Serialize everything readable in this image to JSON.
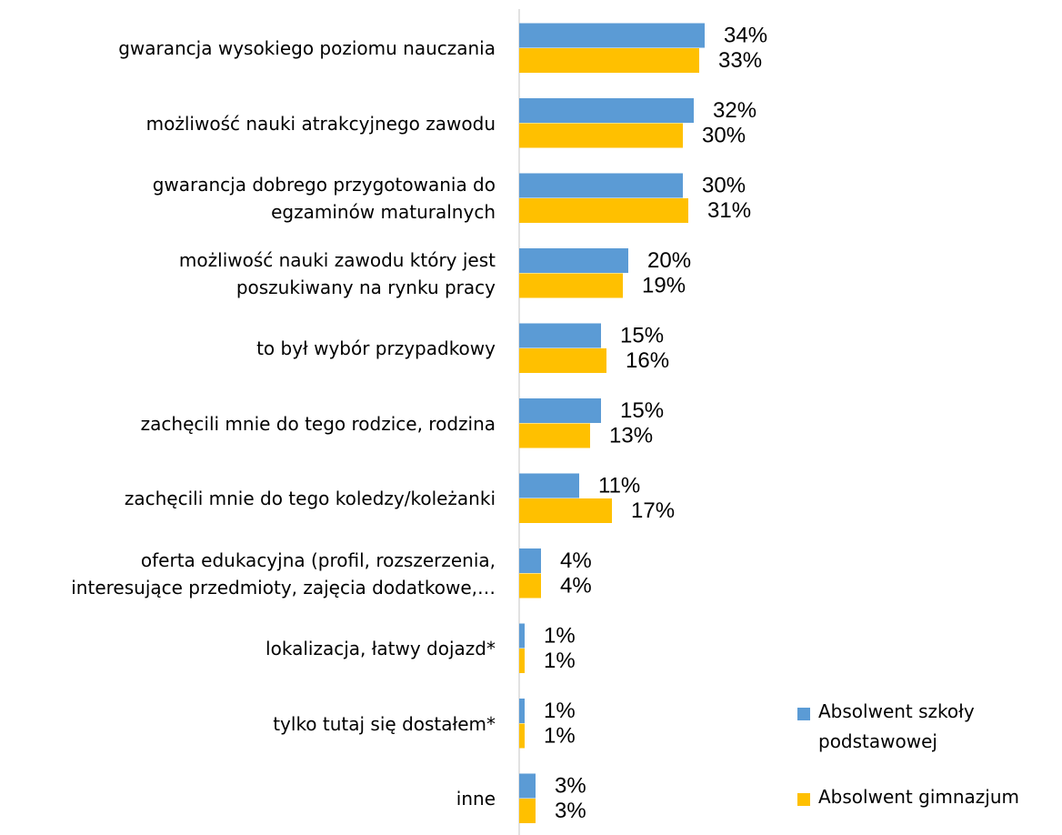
{
  "chart_data": {
    "type": "bar",
    "orientation": "horizontal",
    "categories": [
      "gwarancja wysokiego poziomu nauczania",
      "możliwość nauki atrakcyjnego zawodu",
      "gwarancja dobrego przygotowania do\negzaminów maturalnych",
      "możliwość nauki zawodu który jest\nposzukiwany na rynku pracy",
      "to był wybór przypadkowy",
      "zachęcili mnie do tego rodzice, rodzina",
      "zachęcili mnie do tego koledzy/koleżanki",
      "oferta edukacyjna (profil, rozszerzenia,\ninteresujące przedmioty, zajęcia dodatkowe,…",
      "lokalizacja, łatwy dojazd*",
      "tylko tutaj się dostałem*",
      "inne"
    ],
    "series": [
      {
        "name": "Absolwent szkoły\npodstawowej",
        "color": "#5b9bd5",
        "values": [
          34,
          32,
          30,
          20,
          15,
          15,
          11,
          4,
          1,
          1,
          3
        ],
        "value_labels": [
          "34%",
          "32%",
          "30%",
          "20%",
          "15%",
          "15%",
          "11%",
          "4%",
          "1%",
          "1%",
          "3%"
        ]
      },
      {
        "name": "Absolwent gimnazjum",
        "color": "#ffc000",
        "values": [
          33,
          30,
          31,
          19,
          16,
          13,
          17,
          4,
          1,
          1,
          3
        ],
        "value_labels": [
          "33%",
          "30%",
          "31%",
          "19%",
          "16%",
          "13%",
          "17%",
          "4%",
          "1%",
          "1%",
          "3%"
        ]
      }
    ],
    "legend": "bottom-right"
  }
}
